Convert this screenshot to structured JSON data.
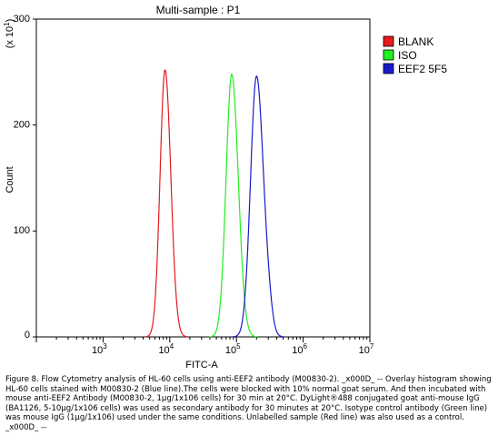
{
  "chart_data": {
    "type": "line",
    "title": "Multi-sample : P1",
    "xlabel": "FITC-A",
    "ylabel": "Count",
    "y_multiplier_label": "(x 10^1)",
    "x_scale": "log",
    "xlim": [
      100,
      10000000
    ],
    "ylim": [
      0,
      300
    ],
    "x_ticks": [
      {
        "value": 1000,
        "base": "10",
        "exp": "3"
      },
      {
        "value": 10000,
        "base": "10",
        "exp": "4"
      },
      {
        "value": 100000,
        "base": "10",
        "exp": "5"
      },
      {
        "value": 1000000,
        "base": "10",
        "exp": "6"
      },
      {
        "value": 10000000,
        "base": "10",
        "exp": "7"
      }
    ],
    "y_ticks": [
      "0",
      "100",
      "200",
      "300"
    ],
    "legend_position": "right",
    "series": [
      {
        "name": "BLANK",
        "color": "#e41a1c",
        "peak_x": 8500,
        "peak_y": 252,
        "width_decades": 0.075
      },
      {
        "name": "ISO",
        "color": "#22ee22",
        "peak_x": 85000,
        "peak_y": 248,
        "width_decades": 0.085
      },
      {
        "name": "EEF2 5F5",
        "color": "#1a1acc",
        "peak_x": 200000,
        "peak_y": 246,
        "width_decades": 0.09
      }
    ]
  },
  "caption": "Figure 8. Flow Cytometry analysis of HL-60 cells using anti-EEF2 antibody (M00830-2). _x000D_ -- Overlay histogram showing HL-60 cells stained with M00830-2 (Blue line).The cells were blocked with 10% normal goat serum. And then incubated with mouse anti-EEF2 Antibody (M00830-2, 1μg/1x106 cells) for 30 min at 20°C. DyLight®488 conjugated goat anti-mouse IgG (BA1126, 5-10μg/1x106 cells) was used as secondary antibody for 30 minutes at 20°C. Isotype control antibody (Green line) was mouse IgG (1μg/1x106) used under the same conditions. Unlabelled sample (Red line) was also used as a control. _x000D_ --"
}
